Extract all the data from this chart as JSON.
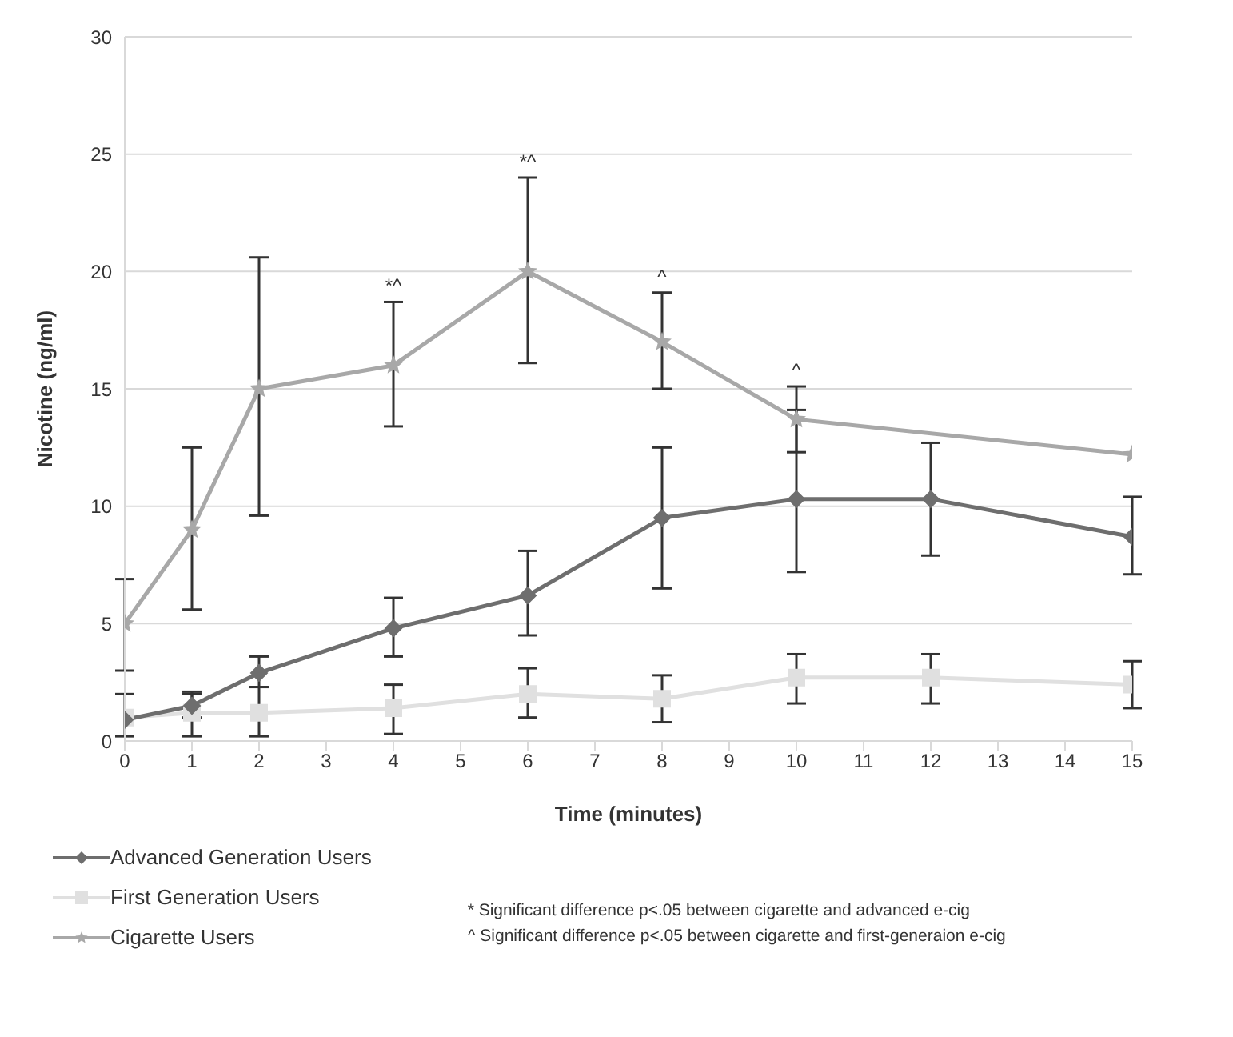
{
  "chart_data": {
    "type": "line",
    "xlabel": "Time (minutes)",
    "ylabel": "Nicotine (ng/ml)",
    "xlim": [
      0,
      15
    ],
    "xticks": [
      0,
      1,
      2,
      3,
      4,
      5,
      6,
      7,
      8,
      9,
      10,
      11,
      12,
      13,
      14,
      15
    ],
    "ylim": [
      0,
      30
    ],
    "yticks": [
      0,
      5,
      10,
      15,
      20,
      25,
      30
    ],
    "grid": "y",
    "legend": "bottom left",
    "series": [
      {
        "name": "Advanced Generation Users",
        "color": "#6e6e6e",
        "marker": "diamond",
        "x": [
          0,
          1,
          2,
          4,
          6,
          8,
          10,
          12,
          15
        ],
        "values": [
          0.9,
          1.5,
          2.9,
          4.8,
          6.2,
          9.5,
          10.3,
          10.3,
          8.7
        ],
        "errors": [
          null,
          [
            1.0,
            2.1
          ],
          [
            2.3,
            3.6
          ],
          [
            3.6,
            6.1
          ],
          [
            4.5,
            8.1
          ],
          [
            6.5,
            12.5
          ],
          [
            7.2,
            14.1
          ],
          [
            7.9,
            12.7
          ],
          [
            7.1,
            10.4
          ]
        ]
      },
      {
        "name": "First Generation Users",
        "color": "#e0e0e0",
        "marker": "square",
        "x": [
          0,
          1,
          2,
          4,
          6,
          8,
          10,
          12,
          15
        ],
        "values": [
          1.0,
          1.2,
          1.2,
          1.4,
          2.0,
          1.8,
          2.7,
          2.7,
          2.4
        ],
        "errors": [
          [
            0.2,
            2.0
          ],
          [
            0.2,
            2.0
          ],
          [
            0.2,
            2.3
          ],
          [
            0.3,
            2.4
          ],
          [
            1.0,
            3.1
          ],
          [
            0.8,
            2.8
          ],
          [
            1.6,
            3.7
          ],
          [
            1.6,
            3.7
          ],
          [
            1.4,
            3.4
          ]
        ]
      },
      {
        "name": "Cigarette Users",
        "color": "#a8a8a8",
        "marker": "star",
        "x": [
          0,
          1,
          2,
          4,
          6,
          8,
          10,
          15
        ],
        "values": [
          5,
          9,
          15,
          16,
          20,
          17,
          13.7,
          12.2
        ],
        "errors": [
          [
            3,
            6.9
          ],
          [
            5.6,
            12.5
          ],
          [
            9.6,
            20.6
          ],
          [
            13.4,
            18.7
          ],
          [
            16.1,
            24
          ],
          [
            15,
            19.1
          ],
          [
            12.3,
            15.1
          ],
          null
        ]
      }
    ],
    "annotations": [
      {
        "text": "*^",
        "x": 4,
        "y": 18.7
      },
      {
        "text": "*^",
        "x": 6,
        "y": 24
      },
      {
        "text": "^",
        "x": 8,
        "y": 19.1
      },
      {
        "text": "^",
        "x": 10,
        "y": 15.1
      },
      "* Significant difference p<.05 between cigarette and advanced e-cig",
      "^ Significant difference p<.05 between cigarette and first-generaion e-cig"
    ]
  }
}
